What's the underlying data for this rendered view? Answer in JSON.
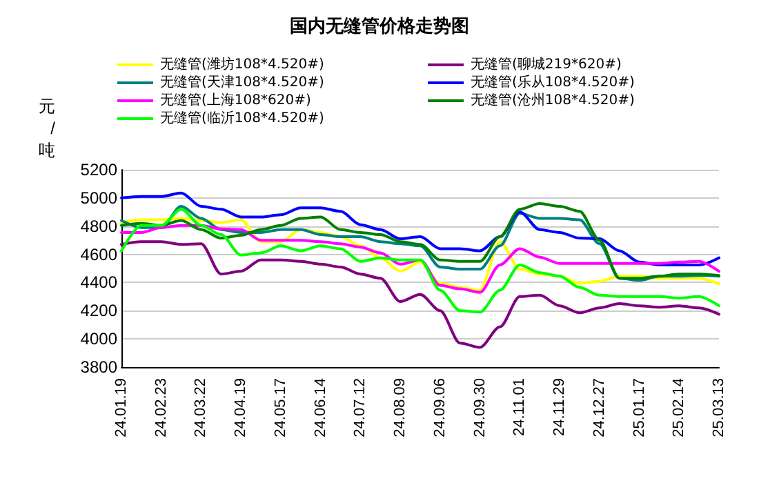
{
  "chart_data": {
    "type": "line",
    "title": "国内无缝管价格走势图",
    "ylabel": "元/吨",
    "categories": [
      "24.01.19",
      null,
      "24.02.23",
      null,
      "24.03.22",
      null,
      "24.04.19",
      null,
      "24.05.17",
      null,
      "24.06.14",
      null,
      "24.07.12",
      null,
      "24.08.09",
      null,
      "24.09.06",
      null,
      "24.09.30",
      null,
      "24.11.01",
      null,
      "24.11.29",
      null,
      "24.12.27",
      null,
      "25.01.17",
      null,
      "25.02.14",
      null,
      "25.03.13"
    ],
    "series": [
      {
        "name": "无缝管(潍坊108*4.520#)",
        "color": "#ffff00",
        "values": [
          4825,
          4845,
          4845,
          4855,
          4840,
          4825,
          4845,
          4690,
          4690,
          4775,
          4755,
          4725,
          4660,
          4575,
          4480,
          4545,
          4395,
          4365,
          4345,
          4690,
          4495,
          4460,
          4445,
          4395,
          4410,
          4445,
          4445,
          4430,
          4430,
          4430,
          4390
        ]
      },
      {
        "name": "无缝管(聊城219*620#)",
        "color": "#800080",
        "values": [
          4670,
          4690,
          4690,
          4670,
          4675,
          4460,
          4480,
          4560,
          4560,
          4550,
          4530,
          4510,
          4460,
          4430,
          4265,
          4315,
          4200,
          3970,
          3940,
          4085,
          4300,
          4310,
          4235,
          4185,
          4220,
          4250,
          4235,
          4225,
          4235,
          4220,
          4175
        ]
      },
      {
        "name": "无缝管(天津108*4.520#)",
        "color": "#008080",
        "values": [
          4840,
          4790,
          4790,
          4940,
          4855,
          4775,
          4755,
          4755,
          4775,
          4775,
          4740,
          4725,
          4725,
          4690,
          4675,
          4660,
          4510,
          4495,
          4495,
          4660,
          4890,
          4855,
          4855,
          4845,
          4675,
          4430,
          4415,
          4445,
          4445,
          4450,
          4445
        ]
      },
      {
        "name": "无缝管(乐从108*4.520#)",
        "color": "#0000ff",
        "values": [
          5000,
          5010,
          5010,
          5035,
          4940,
          4920,
          4865,
          4865,
          4880,
          4930,
          4930,
          4905,
          4810,
          4775,
          4710,
          4725,
          4640,
          4640,
          4625,
          4725,
          4900,
          4775,
          4755,
          4715,
          4710,
          4625,
          4545,
          4525,
          4525,
          4525,
          4575
        ]
      },
      {
        "name": "无缝管(上海108*620#)",
        "color": "#ff00ff",
        "values": [
          4755,
          4755,
          4790,
          4805,
          4805,
          4780,
          4775,
          4700,
          4700,
          4700,
          4690,
          4675,
          4650,
          4610,
          4530,
          4560,
          4380,
          4355,
          4330,
          4525,
          4640,
          4580,
          4535,
          4535,
          4535,
          4535,
          4535,
          4535,
          4545,
          4550,
          4480
        ]
      },
      {
        "name": "无缝管(沧州108*4.520#)",
        "color": "#008000",
        "values": [
          4805,
          4820,
          4805,
          4840,
          4775,
          4715,
          4735,
          4775,
          4805,
          4855,
          4865,
          4775,
          4755,
          4740,
          4690,
          4670,
          4560,
          4550,
          4550,
          4725,
          4920,
          4960,
          4940,
          4905,
          4700,
          4430,
          4430,
          4445,
          4460,
          4460,
          4450
        ]
      },
      {
        "name": "无缝管(临沂108*4.520#)",
        "color": "#00ff00",
        "values": [
          4625,
          4805,
          4805,
          4920,
          4805,
          4740,
          4595,
          4610,
          4660,
          4625,
          4660,
          4640,
          4550,
          4575,
          4560,
          4560,
          4345,
          4200,
          4190,
          4345,
          4525,
          4470,
          4445,
          4365,
          4310,
          4300,
          4300,
          4300,
          4290,
          4300,
          4235
        ]
      }
    ],
    "ylim": [
      3800,
      5200
    ],
    "yticks": [
      3800,
      4000,
      4200,
      4400,
      4600,
      4800,
      5000,
      5200
    ],
    "grid": "y",
    "legend": "top",
    "marker": "none",
    "line_style": "solid"
  }
}
